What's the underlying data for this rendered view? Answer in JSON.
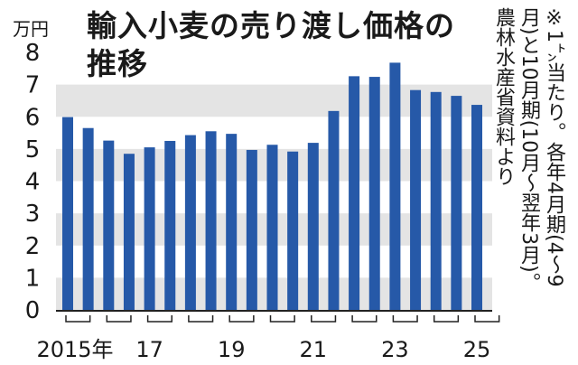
{
  "title": {
    "line1": "輸入小麦の売り渡し価格の",
    "line2": "推移"
  },
  "unit": "万円",
  "note": {
    "line1": "※1㌧当たり。各年4月期(4〜9",
    "line2": "月)と10月期(10月〜翌年3月)。",
    "line3": "農林水産省資料より"
  },
  "colors": {
    "bar": "#2659a8",
    "band": "#e4e4e4",
    "axis": "#222222",
    "text": "#1a1a1a"
  },
  "chart_data": {
    "type": "bar",
    "title": "輸入小麦の売り渡し価格の推移",
    "ylabel": "万円",
    "ylim": [
      0,
      8
    ],
    "yticks": [
      0,
      1,
      2,
      3,
      4,
      5,
      6,
      7,
      8
    ],
    "grid": "alternating horizontal bands",
    "xtick_labels": [
      {
        "label": "2015年",
        "bar_index": 0
      },
      {
        "label": "17",
        "bar_index": 4
      },
      {
        "label": "19",
        "bar_index": 8
      },
      {
        "label": "21",
        "bar_index": 12
      },
      {
        "label": "23",
        "bar_index": 16
      },
      {
        "label": "25",
        "bar_index": 20
      }
    ],
    "values": [
      5.99,
      5.65,
      5.26,
      4.85,
      5.05,
      5.25,
      5.43,
      5.55,
      5.47,
      4.97,
      5.13,
      4.92,
      5.19,
      6.18,
      7.26,
      7.24,
      7.68,
      6.83,
      6.77,
      6.65,
      6.37
    ]
  }
}
